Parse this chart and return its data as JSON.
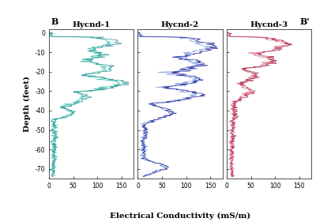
{
  "title": "",
  "xlabel": "Electrical Conductivity (mS/m)",
  "ylabel": "Depth (feet)",
  "panels": [
    "Hycnd-1",
    "Hycnd-2",
    "Hycnd-3"
  ],
  "xlim": [
    0,
    175
  ],
  "ylim": [
    -75,
    2
  ],
  "yticks": [
    0,
    -10,
    -20,
    -30,
    -40,
    -50,
    -60,
    -70
  ],
  "xticks": [
    0,
    50,
    100,
    150
  ],
  "label_B": "B",
  "label_Bprime": "B'",
  "colors_1": [
    "#40c0b0",
    "#008080"
  ],
  "colors_2": [
    "#7799dd",
    "#000088"
  ],
  "colors_3": [
    "#dd6688",
    "#990022"
  ],
  "bg_color": "#ffffff",
  "panel_bg": "#ffffff",
  "figsize": [
    4.0,
    2.81
  ],
  "dpi": 100
}
